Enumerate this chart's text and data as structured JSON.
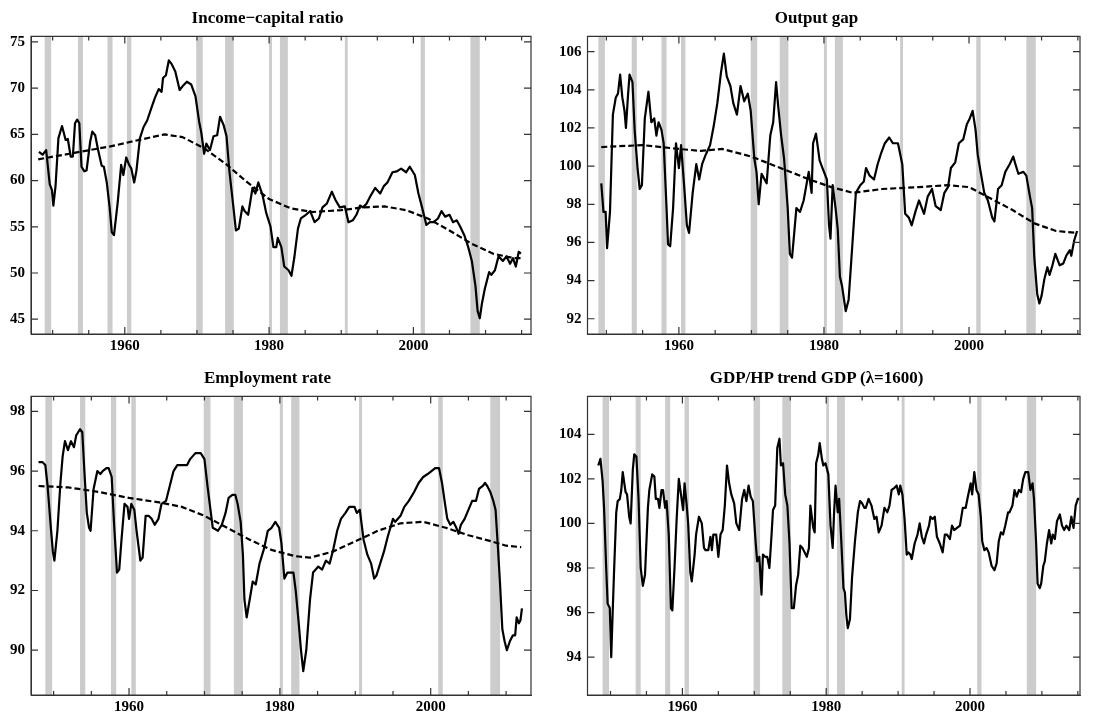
{
  "chart_data": [
    {
      "type": "line",
      "title": "Income−capital ratio",
      "xlim": [
        1947,
        2016.3
      ],
      "ylim": [
        43.4,
        75.6
      ],
      "yticks": [
        45,
        50,
        55,
        60,
        65,
        70,
        75
      ],
      "xticks": [
        {
          "value": 1950,
          "label": null
        },
        {
          "value": 1955,
          "label": null
        },
        1960,
        {
          "value": 1965,
          "label": null
        },
        {
          "value": 1970,
          "label": null
        },
        {
          "value": 1975,
          "label": null
        },
        1980,
        {
          "value": 1985,
          "label": null
        },
        {
          "value": 1990,
          "label": null
        },
        {
          "value": 1995,
          "label": null
        },
        2000,
        {
          "value": 2005,
          "label": null
        },
        {
          "value": 2010,
          "label": null
        },
        {
          "value": 2015,
          "label": null
        }
      ],
      "grid": false,
      "legend": false,
      "marker": "none",
      "bands": [
        {
          "axis": "x",
          "from": 1948.9,
          "to": 1949.8,
          "color": "#cccccc"
        },
        {
          "axis": "x",
          "from": 1953.5,
          "to": 1954.2,
          "color": "#cccccc"
        },
        {
          "axis": "x",
          "from": 1957.6,
          "to": 1958.3,
          "color": "#cccccc"
        },
        {
          "axis": "x",
          "from": 1960.3,
          "to": 1960.9,
          "color": "#cccccc"
        },
        {
          "axis": "x",
          "from": 1969.9,
          "to": 1970.8,
          "color": "#cccccc"
        },
        {
          "axis": "x",
          "from": 1973.9,
          "to": 1975.1,
          "color": "#cccccc"
        },
        {
          "axis": "x",
          "from": 1980.0,
          "to": 1980.4,
          "color": "#cccccc"
        },
        {
          "axis": "x",
          "from": 1981.5,
          "to": 1982.6,
          "color": "#cccccc"
        },
        {
          "axis": "x",
          "from": 1990.5,
          "to": 1990.9,
          "color": "#cccccc"
        },
        {
          "axis": "x",
          "from": 2001.0,
          "to": 2001.6,
          "color": "#cccccc"
        },
        {
          "axis": "x",
          "from": 2007.9,
          "to": 2009.2,
          "color": "#cccccc"
        }
      ],
      "series": [
        {
          "color": "#000000",
          "line_style": "solid",
          "x": [
            1948.1,
            1948.6,
            1949.1,
            1949.6,
            1949.9,
            1950.1,
            1950.4,
            1950.8,
            1951.3,
            1951.8,
            1952.1,
            1952.5,
            1952.8,
            1953.1,
            1953.4,
            1953.7,
            1954.0,
            1954.4,
            1954.7,
            1955.2,
            1955.5,
            1955.9,
            1956.3,
            1956.8,
            1957.1,
            1957.5,
            1957.9,
            1958.2,
            1958.5,
            1959.0,
            1959.5,
            1959.8,
            1960.2,
            1960.6,
            1960.9,
            1961.3,
            1961.6,
            1962.1,
            1962.6,
            1963.1,
            1963.7,
            1964.2,
            1964.7,
            1965.1,
            1965.3,
            1965.7,
            1966.1,
            1966.5,
            1967.0,
            1967.6,
            1968.0,
            1968.6,
            1969.2,
            1969.8,
            1970.3,
            1970.6,
            1971.0,
            1971.3,
            1971.8,
            1972.3,
            1972.8,
            1973.2,
            1973.7,
            1974.1,
            1974.5,
            1975.0,
            1975.4,
            1975.8,
            1976.3,
            1976.6,
            1977.1,
            1977.7,
            1978.1,
            1978.5,
            1979.1,
            1979.6,
            1980.2,
            1980.6,
            1981.0,
            1981.2,
            1981.7,
            1982.1,
            1982.7,
            1983.1,
            1983.5,
            1984.0,
            1984.4,
            1985.1,
            1985.7,
            1986.3,
            1986.9,
            1987.4,
            1988.0,
            1988.7,
            1989.2,
            1989.8,
            1990.5,
            1991.0,
            1991.6,
            1992.1,
            1992.6,
            1993.0,
            1993.5,
            1994.1,
            1994.7,
            1995.4,
            1995.9,
            1996.4,
            1997.1,
            1997.7,
            1998.3,
            1999.0,
            1999.5,
            2000.2,
            2000.7,
            2001.2,
            2001.8,
            2002.3,
            2002.8,
            2003.4,
            2003.9,
            2004.4,
            2005.0,
            2005.5,
            2006.0,
            2006.5,
            2007.1,
            2007.6,
            2008.1,
            2008.6,
            2008.9,
            2009.2,
            2009.5,
            2009.9,
            2010.5,
            2010.8,
            2011.3,
            2011.8,
            2012.4,
            2012.9,
            2013.4,
            2013.8,
            2014.2,
            2014.6,
            2014.9
          ],
          "values": [
            63.1,
            62.8,
            63.3,
            59.6,
            59.0,
            57.3,
            59.4,
            64.6,
            65.9,
            64.4,
            64.5,
            62.6,
            62.6,
            66.2,
            66.6,
            66.2,
            61.5,
            61.0,
            61.1,
            64.2,
            65.3,
            64.9,
            63.3,
            61.6,
            61.5,
            59.8,
            57.1,
            54.4,
            54.1,
            57.5,
            61.7,
            60.6,
            62.5,
            61.7,
            61.3,
            59.8,
            61.0,
            64.6,
            65.8,
            66.5,
            67.9,
            69.0,
            69.9,
            69.6,
            71.1,
            71.4,
            73.0,
            72.6,
            71.8,
            69.8,
            70.2,
            70.7,
            70.4,
            69.1,
            66.4,
            65.2,
            62.9,
            64.0,
            63.3,
            64.8,
            64.9,
            66.9,
            66.0,
            64.8,
            61.0,
            57.5,
            54.6,
            54.8,
            57.2,
            56.7,
            56.3,
            59.2,
            58.6,
            59.8,
            58.4,
            56.5,
            55.0,
            52.8,
            52.8,
            53.8,
            52.8,
            50.7,
            50.3,
            49.7,
            51.7,
            54.8,
            55.9,
            56.3,
            56.7,
            55.5,
            55.9,
            57.1,
            57.5,
            58.8,
            57.9,
            57.1,
            57.2,
            55.5,
            55.7,
            56.3,
            57.3,
            57.1,
            57.5,
            58.4,
            59.2,
            58.6,
            59.4,
            59.8,
            60.9,
            61.0,
            61.3,
            60.9,
            61.5,
            60.6,
            58.6,
            57.1,
            55.2,
            55.5,
            55.5,
            55.9,
            56.7,
            56.1,
            56.3,
            55.5,
            55.7,
            55.0,
            54.0,
            52.8,
            51.3,
            48.6,
            45.9,
            45.1,
            46.7,
            48.3,
            50.1,
            49.8,
            50.3,
            51.8,
            51.3,
            51.8,
            51.0,
            51.6,
            50.7,
            52.3,
            52.1
          ]
        },
        {
          "color": "#000000",
          "line_style": "dashed",
          "x": [
            1948,
            1953,
            1958,
            1962,
            1965.5,
            1968,
            1971,
            1974,
            1977,
            1980,
            1983,
            1986,
            1990,
            1993,
            1996,
            1999,
            2002,
            2005,
            2008,
            2011,
            2014,
            2015
          ],
          "values": [
            62.3,
            63.0,
            63.7,
            64.4,
            65.0,
            64.7,
            63.5,
            61.8,
            59.8,
            58.0,
            57.0,
            56.6,
            56.8,
            57.1,
            57.2,
            56.8,
            55.9,
            54.6,
            53.2,
            52.1,
            51.6,
            51.6
          ]
        }
      ]
    },
    {
      "type": "line",
      "title": "Output gap",
      "xlim": [
        1947.4,
        2015.3
      ],
      "ylim": [
        91.2,
        106.8
      ],
      "yticks": [
        92,
        94,
        96,
        98,
        100,
        102,
        104,
        106
      ],
      "xticks": [
        {
          "value": 1950,
          "label": null
        },
        {
          "value": 1955,
          "label": null
        },
        1960,
        {
          "value": 1965,
          "label": null
        },
        {
          "value": 1970,
          "label": null
        },
        {
          "value": 1975,
          "label": null
        },
        1980,
        {
          "value": 1985,
          "label": null
        },
        {
          "value": 1990,
          "label": null
        },
        {
          "value": 1995,
          "label": null
        },
        2000,
        {
          "value": 2005,
          "label": null
        },
        {
          "value": 2010,
          "label": null
        },
        {
          "value": 2015,
          "label": null
        }
      ],
      "grid": false,
      "legend": false,
      "marker": "none",
      "bands": [
        {
          "axis": "x",
          "from": 1948.9,
          "to": 1949.8,
          "color": "#cccccc"
        },
        {
          "axis": "x",
          "from": 1953.5,
          "to": 1954.2,
          "color": "#cccccc"
        },
        {
          "axis": "x",
          "from": 1957.6,
          "to": 1958.3,
          "color": "#cccccc"
        },
        {
          "axis": "x",
          "from": 1960.3,
          "to": 1960.9,
          "color": "#cccccc"
        },
        {
          "axis": "x",
          "from": 1969.9,
          "to": 1970.8,
          "color": "#cccccc"
        },
        {
          "axis": "x",
          "from": 1973.9,
          "to": 1975.1,
          "color": "#cccccc"
        },
        {
          "axis": "x",
          "from": 1980.0,
          "to": 1980.4,
          "color": "#cccccc"
        },
        {
          "axis": "x",
          "from": 1981.5,
          "to": 1982.6,
          "color": "#cccccc"
        },
        {
          "axis": "x",
          "from": 1990.5,
          "to": 1990.9,
          "color": "#cccccc"
        },
        {
          "axis": "x",
          "from": 2001.0,
          "to": 2001.6,
          "color": "#cccccc"
        },
        {
          "axis": "x",
          "from": 2007.9,
          "to": 2009.2,
          "color": "#cccccc"
        }
      ],
      "series": [
        {
          "color": "#000000",
          "line_style": "solid",
          "x": [
            1949.3,
            1949.6,
            1949.9,
            1950.1,
            1950.5,
            1950.9,
            1951.3,
            1951.6,
            1951.9,
            1952.2,
            1952.5,
            1952.7,
            1953.0,
            1953.2,
            1953.6,
            1953.9,
            1954.3,
            1954.6,
            1954.9,
            1955.3,
            1955.8,
            1956.2,
            1956.6,
            1956.9,
            1957.2,
            1957.6,
            1957.9,
            1958.3,
            1958.5,
            1958.8,
            1959.2,
            1959.6,
            1960.0,
            1960.3,
            1960.7,
            1961.1,
            1961.4,
            1961.9,
            1962.4,
            1962.8,
            1963.2,
            1963.7,
            1964.3,
            1964.8,
            1965.3,
            1965.8,
            1966.2,
            1966.6,
            1967.1,
            1967.5,
            1968.0,
            1968.5,
            1969.0,
            1969.5,
            1969.9,
            1970.4,
            1970.7,
            1971.0,
            1971.4,
            1972.1,
            1972.6,
            1973.0,
            1973.4,
            1973.7,
            1974.1,
            1974.5,
            1975.0,
            1975.3,
            1975.6,
            1976.2,
            1976.7,
            1977.2,
            1977.9,
            1978.3,
            1978.5,
            1978.9,
            1979.4,
            1979.8,
            1980.4,
            1980.7,
            1980.9,
            1981.2,
            1981.6,
            1981.9,
            1982.2,
            1982.5,
            1983.0,
            1983.4,
            1983.9,
            1984.4,
            1985.0,
            1985.5,
            1985.8,
            1986.3,
            1986.9,
            1987.4,
            1987.9,
            1988.4,
            1989.0,
            1989.5,
            1990.2,
            1990.8,
            1991.2,
            1991.7,
            1992.1,
            1992.6,
            1993.1,
            1993.8,
            1994.3,
            1994.9,
            1995.4,
            1996.1,
            1996.6,
            1997.1,
            1997.5,
            1998.1,
            1998.6,
            1999.2,
            1999.7,
            2000.1,
            2000.5,
            2000.9,
            2001.2,
            2001.6,
            2002.1,
            2002.6,
            2003.2,
            2003.5,
            2004.0,
            2004.5,
            2005.0,
            2005.6,
            2006.1,
            2006.4,
            2006.8,
            2007.5,
            2007.9,
            2008.4,
            2008.7,
            2009.0,
            2009.4,
            2009.7,
            2010.0,
            2010.4,
            2010.8,
            2011.1,
            2011.5,
            2011.9,
            2012.5,
            2013.0,
            2013.4,
            2013.9,
            2014.1,
            2014.5,
            2014.9
          ],
          "values": [
            99.1,
            97.6,
            97.6,
            95.7,
            97.6,
            102.7,
            103.6,
            103.8,
            104.8,
            103.6,
            102.9,
            102.0,
            103.8,
            104.8,
            104.4,
            101.9,
            99.9,
            98.8,
            99.0,
            102.5,
            103.9,
            102.3,
            102.5,
            101.6,
            102.3,
            101.9,
            101.2,
            97.8,
            95.9,
            95.8,
            97.8,
            101.2,
            99.9,
            101.1,
            99.1,
            96.9,
            96.5,
            98.6,
            100.1,
            99.3,
            100.1,
            100.6,
            101.1,
            102.1,
            103.3,
            104.9,
            105.9,
            104.7,
            104.2,
            103.3,
            102.7,
            104.2,
            103.4,
            103.8,
            102.9,
            100.4,
            99.7,
            98.0,
            99.6,
            99.1,
            101.6,
            102.3,
            104.4,
            103.1,
            101.6,
            100.4,
            97.8,
            95.4,
            95.2,
            97.8,
            97.6,
            98.2,
            99.7,
            98.6,
            101.2,
            101.7,
            100.3,
            99.9,
            99.3,
            96.9,
            96.2,
            99.0,
            97.8,
            96.7,
            94.2,
            93.7,
            92.4,
            93.0,
            95.8,
            98.6,
            99.0,
            99.2,
            99.9,
            99.5,
            99.3,
            100.1,
            100.7,
            101.2,
            101.5,
            101.2,
            101.2,
            100.1,
            97.5,
            97.3,
            96.9,
            97.6,
            98.2,
            97.5,
            98.4,
            98.8,
            97.9,
            97.7,
            98.6,
            98.9,
            99.9,
            100.2,
            101.2,
            101.4,
            102.2,
            102.5,
            102.9,
            101.9,
            100.6,
            99.7,
            98.6,
            98.2,
            97.3,
            97.1,
            98.8,
            99.0,
            99.7,
            100.1,
            100.5,
            100.1,
            99.6,
            99.7,
            99.5,
            98.4,
            97.8,
            95.2,
            93.3,
            92.8,
            93.2,
            94.1,
            94.7,
            94.3,
            94.8,
            95.4,
            94.8,
            94.9,
            95.3,
            95.6,
            95.3,
            96.1,
            96.6
          ]
        },
        {
          "color": "#000000",
          "line_style": "dashed",
          "x": [
            1949.3,
            1955,
            1960,
            1963,
            1966,
            1970,
            1974,
            1978,
            1981,
            1984,
            1988,
            1993,
            1997,
            2000,
            2003,
            2006,
            2009,
            2012,
            2014.9
          ],
          "values": [
            101.0,
            101.1,
            100.9,
            100.8,
            100.9,
            100.5,
            99.9,
            99.3,
            98.9,
            98.6,
            98.8,
            98.9,
            99.0,
            98.9,
            98.3,
            97.7,
            97.0,
            96.6,
            96.5
          ]
        }
      ]
    },
    {
      "type": "line",
      "title": "Employment rate",
      "xlim": [
        1947,
        2013.3
      ],
      "ylim": [
        88.5,
        98.5
      ],
      "yticks": [
        90,
        92,
        94,
        96,
        98
      ],
      "xticks": [
        {
          "value": 1950,
          "label": null
        },
        {
          "value": 1955,
          "label": null
        },
        1960,
        {
          "value": 1965,
          "label": null
        },
        {
          "value": 1970,
          "label": null
        },
        {
          "value": 1975,
          "label": null
        },
        1980,
        {
          "value": 1985,
          "label": null
        },
        {
          "value": 1990,
          "label": null
        },
        {
          "value": 1995,
          "label": null
        },
        2000,
        {
          "value": 2005,
          "label": null
        },
        {
          "value": 2010,
          "label": null
        }
      ],
      "grid": false,
      "legend": false,
      "marker": "none",
      "bands": [
        {
          "axis": "x",
          "from": 1948.9,
          "to": 1949.8,
          "color": "#cccccc"
        },
        {
          "axis": "x",
          "from": 1953.5,
          "to": 1954.2,
          "color": "#cccccc"
        },
        {
          "axis": "x",
          "from": 1957.6,
          "to": 1958.3,
          "color": "#cccccc"
        },
        {
          "axis": "x",
          "from": 1960.3,
          "to": 1960.9,
          "color": "#cccccc"
        },
        {
          "axis": "x",
          "from": 1969.9,
          "to": 1970.8,
          "color": "#cccccc"
        },
        {
          "axis": "x",
          "from": 1973.9,
          "to": 1975.1,
          "color": "#cccccc"
        },
        {
          "axis": "x",
          "from": 1980.0,
          "to": 1980.4,
          "color": "#cccccc"
        },
        {
          "axis": "x",
          "from": 1981.5,
          "to": 1982.6,
          "color": "#cccccc"
        },
        {
          "axis": "x",
          "from": 1990.5,
          "to": 1990.9,
          "color": "#cccccc"
        },
        {
          "axis": "x",
          "from": 2001.0,
          "to": 2001.6,
          "color": "#cccccc"
        },
        {
          "axis": "x",
          "from": 2007.9,
          "to": 2009.2,
          "color": "#cccccc"
        }
      ],
      "series": [
        {
          "color": "#000000",
          "line_style": "solid",
          "x": [
            1948.0,
            1948.5,
            1948.9,
            1949.2,
            1949.6,
            1949.9,
            1950.1,
            1950.5,
            1950.9,
            1951.2,
            1951.5,
            1951.9,
            1952.3,
            1952.7,
            1953.0,
            1953.5,
            1953.8,
            1954.1,
            1954.4,
            1954.7,
            1954.9,
            1955.3,
            1955.8,
            1956.2,
            1956.5,
            1957.0,
            1957.3,
            1957.7,
            1958.0,
            1958.4,
            1958.7,
            1959.0,
            1959.4,
            1959.8,
            1960.0,
            1960.3,
            1960.7,
            1961.0,
            1961.5,
            1961.8,
            1962.2,
            1962.6,
            1963.0,
            1963.4,
            1963.9,
            1964.3,
            1964.9,
            1965.4,
            1965.9,
            1966.4,
            1967.0,
            1967.7,
            1968.1,
            1968.8,
            1969.5,
            1970.0,
            1970.4,
            1970.8,
            1971.1,
            1971.8,
            1972.3,
            1972.8,
            1973.2,
            1973.7,
            1974.1,
            1974.4,
            1974.8,
            1975.1,
            1975.3,
            1975.6,
            1976.0,
            1976.4,
            1976.8,
            1977.3,
            1977.9,
            1978.4,
            1978.9,
            1979.4,
            1979.9,
            1980.2,
            1980.6,
            1981.0,
            1981.5,
            1981.8,
            1982.1,
            1982.5,
            1982.8,
            1983.1,
            1983.5,
            1984.0,
            1984.4,
            1985.1,
            1985.6,
            1986.1,
            1986.6,
            1987.1,
            1987.6,
            1988.1,
            1988.7,
            1989.2,
            1989.9,
            1990.2,
            1990.6,
            1991.1,
            1991.6,
            1992.1,
            1992.5,
            1992.8,
            1993.3,
            1993.8,
            1994.3,
            1995.0,
            1995.3,
            1996.0,
            1996.5,
            1997.1,
            1997.8,
            1998.4,
            1999.0,
            1999.6,
            2000.1,
            2000.6,
            2001.1,
            2001.5,
            2001.9,
            2002.2,
            2002.6,
            2003.0,
            2003.4,
            2003.7,
            2004.0,
            2004.5,
            2005.0,
            2005.5,
            2006.0,
            2006.4,
            2006.9,
            2007.2,
            2007.5,
            2007.9,
            2008.3,
            2008.6,
            2008.9,
            2009.2,
            2009.5,
            2009.8,
            2010.1,
            2010.5,
            2010.9,
            2011.2,
            2011.4,
            2011.7,
            2011.9,
            2012.1
          ],
          "values": [
            96.3,
            96.3,
            96.2,
            95.5,
            94.2,
            93.3,
            93.0,
            94.0,
            95.6,
            96.5,
            97.0,
            96.7,
            97.0,
            96.8,
            97.2,
            97.4,
            97.3,
            95.9,
            94.6,
            94.1,
            94.0,
            95.4,
            96.0,
            95.9,
            96.0,
            96.1,
            96.1,
            95.8,
            94.3,
            92.6,
            92.7,
            93.7,
            94.9,
            94.8,
            94.4,
            94.9,
            94.7,
            94.0,
            93.0,
            93.1,
            94.5,
            94.5,
            94.4,
            94.2,
            94.4,
            94.9,
            95.0,
            95.5,
            96.0,
            96.2,
            96.2,
            96.2,
            96.4,
            96.6,
            96.6,
            96.4,
            95.5,
            94.7,
            94.1,
            94.0,
            94.2,
            94.6,
            95.1,
            95.2,
            95.2,
            94.9,
            94.3,
            93.2,
            91.7,
            91.1,
            91.7,
            92.3,
            92.2,
            92.9,
            93.4,
            94.0,
            94.1,
            94.3,
            94.1,
            93.6,
            92.4,
            92.6,
            92.6,
            92.6,
            92.0,
            90.9,
            90.0,
            89.3,
            90.0,
            91.7,
            92.6,
            92.8,
            92.7,
            93.0,
            92.9,
            93.4,
            94.0,
            94.4,
            94.6,
            94.8,
            94.8,
            94.6,
            94.7,
            93.7,
            93.2,
            92.9,
            92.4,
            92.5,
            92.9,
            93.3,
            93.8,
            94.4,
            94.3,
            94.5,
            94.8,
            95.0,
            95.3,
            95.6,
            95.8,
            95.9,
            96.0,
            96.1,
            96.1,
            95.6,
            94.9,
            94.4,
            94.2,
            94.3,
            94.1,
            93.9,
            94.2,
            94.4,
            94.7,
            95.0,
            95.0,
            95.4,
            95.5,
            95.6,
            95.5,
            95.3,
            95.0,
            94.7,
            93.5,
            92.2,
            90.7,
            90.3,
            90.0,
            90.3,
            90.5,
            90.5,
            91.1,
            90.9,
            91.0,
            91.4
          ]
        },
        {
          "color": "#000000",
          "line_style": "dashed",
          "x": [
            1948,
            1952,
            1956,
            1960,
            1964,
            1967,
            1970,
            1973,
            1976,
            1979,
            1982,
            1984,
            1987,
            1990,
            1993,
            1996,
            1999,
            2002,
            2005,
            2008,
            2010,
            2012
          ],
          "values": [
            95.5,
            95.45,
            95.3,
            95.1,
            94.95,
            94.8,
            94.5,
            94.1,
            93.7,
            93.35,
            93.15,
            93.1,
            93.3,
            93.65,
            94.0,
            94.25,
            94.3,
            94.1,
            93.85,
            93.65,
            93.5,
            93.45
          ]
        }
      ]
    },
    {
      "type": "line",
      "title": "GDP/HP trend GDP (λ=1600)",
      "xlim": [
        1946.8,
        2015.3
      ],
      "ylim": [
        92.3,
        105.7
      ],
      "yticks": [
        94,
        96,
        98,
        100,
        102,
        104
      ],
      "xticks": [
        {
          "value": 1950,
          "label": null
        },
        {
          "value": 1955,
          "label": null
        },
        1960,
        {
          "value": 1965,
          "label": null
        },
        {
          "value": 1970,
          "label": null
        },
        {
          "value": 1975,
          "label": null
        },
        1980,
        {
          "value": 1985,
          "label": null
        },
        {
          "value": 1990,
          "label": null
        },
        {
          "value": 1995,
          "label": null
        },
        2000,
        {
          "value": 2005,
          "label": null
        },
        {
          "value": 2010,
          "label": null
        },
        {
          "value": 2015,
          "label": null
        }
      ],
      "grid": false,
      "legend": false,
      "marker": "none",
      "bands": [
        {
          "axis": "x",
          "from": 1948.9,
          "to": 1949.8,
          "color": "#cccccc"
        },
        {
          "axis": "x",
          "from": 1953.5,
          "to": 1954.2,
          "color": "#cccccc"
        },
        {
          "axis": "x",
          "from": 1957.6,
          "to": 1958.3,
          "color": "#cccccc"
        },
        {
          "axis": "x",
          "from": 1960.3,
          "to": 1960.9,
          "color": "#cccccc"
        },
        {
          "axis": "x",
          "from": 1969.9,
          "to": 1970.8,
          "color": "#cccccc"
        },
        {
          "axis": "x",
          "from": 1973.9,
          "to": 1975.1,
          "color": "#cccccc"
        },
        {
          "axis": "x",
          "from": 1980.0,
          "to": 1980.4,
          "color": "#cccccc"
        },
        {
          "axis": "x",
          "from": 1981.5,
          "to": 1982.6,
          "color": "#cccccc"
        },
        {
          "axis": "x",
          "from": 1990.5,
          "to": 1990.9,
          "color": "#cccccc"
        },
        {
          "axis": "x",
          "from": 2001.0,
          "to": 2001.6,
          "color": "#cccccc"
        },
        {
          "axis": "x",
          "from": 2007.9,
          "to": 2009.2,
          "color": "#cccccc"
        }
      ],
      "series": [
        {
          "color": "#000000",
          "line_style": "solid",
          "x": [
            1948.3,
            1948.6,
            1948.9,
            1949.1,
            1949.4,
            1949.6,
            1949.9,
            1950.1,
            1950.3,
            1950.5,
            1950.8,
            1951.0,
            1951.3,
            1951.5,
            1951.7,
            1952.1,
            1952.3,
            1952.6,
            1952.8,
            1953.1,
            1953.3,
            1953.6,
            1953.9,
            1954.2,
            1954.5,
            1954.8,
            1955.2,
            1955.4,
            1955.8,
            1956.1,
            1956.3,
            1956.6,
            1956.8,
            1957.1,
            1957.3,
            1957.6,
            1957.8,
            1958.1,
            1958.4,
            1958.6,
            1958.9,
            1959.2,
            1959.5,
            1959.8,
            1960.1,
            1960.3,
            1960.6,
            1960.8,
            1961.1,
            1961.3,
            1961.7,
            1961.9,
            1962.3,
            1962.7,
            1963.0,
            1963.2,
            1963.6,
            1963.9,
            1964.1,
            1964.3,
            1964.7,
            1965.0,
            1965.3,
            1965.6,
            1965.9,
            1966.2,
            1966.5,
            1966.8,
            1967.2,
            1967.5,
            1967.9,
            1968.3,
            1968.6,
            1968.9,
            1969.2,
            1969.5,
            1969.8,
            1970.2,
            1970.4,
            1970.7,
            1971.0,
            1971.2,
            1971.5,
            1971.8,
            1972.1,
            1972.4,
            1972.6,
            1972.9,
            1973.2,
            1973.5,
            1973.7,
            1974.0,
            1974.3,
            1974.6,
            1974.9,
            1975.2,
            1975.5,
            1975.8,
            1976.1,
            1976.4,
            1976.7,
            1977.0,
            1977.3,
            1977.6,
            1977.8,
            1978.2,
            1978.4,
            1978.6,
            1978.9,
            1979.1,
            1979.4,
            1979.6,
            1979.9,
            1980.3,
            1980.6,
            1980.9,
            1981.1,
            1981.3,
            1981.6,
            1981.8,
            1982.1,
            1982.4,
            1982.6,
            1982.8,
            1983.0,
            1983.3,
            1983.6,
            1984.0,
            1984.4,
            1984.7,
            1985.0,
            1985.3,
            1985.5,
            1985.9,
            1986.3,
            1986.7,
            1987.0,
            1987.3,
            1987.7,
            1988.1,
            1988.5,
            1988.8,
            1989.1,
            1989.5,
            1989.8,
            1990.1,
            1990.3,
            1990.6,
            1990.9,
            1991.2,
            1991.4,
            1991.7,
            1991.9,
            1992.3,
            1992.7,
            1993.0,
            1993.3,
            1993.6,
            1993.9,
            1994.3,
            1994.5,
            1994.8,
            1995.1,
            1995.4,
            1995.8,
            1996.2,
            1996.5,
            1996.8,
            1997.2,
            1997.5,
            1997.8,
            1998.2,
            1998.6,
            1999.0,
            1999.4,
            1999.7,
            2000.1,
            2000.3,
            2000.6,
            2000.9,
            2001.2,
            2001.5,
            2001.7,
            2002.0,
            2002.3,
            2002.6,
            2003.0,
            2003.4,
            2003.7,
            2004.0,
            2004.3,
            2004.6,
            2004.9,
            2005.3,
            2005.5,
            2005.9,
            2006.2,
            2006.5,
            2006.8,
            2007.1,
            2007.4,
            2007.7,
            2008.1,
            2008.4,
            2008.7,
            2008.9,
            2009.2,
            2009.4,
            2009.7,
            2009.9,
            2010.2,
            2010.4,
            2010.7,
            2011.0,
            2011.3,
            2011.5,
            2011.8,
            2012.1,
            2012.5,
            2012.8,
            2013.1,
            2013.4,
            2013.8,
            2014.1,
            2014.4,
            2014.7,
            2015.0,
            2015.2
          ],
          "values": [
            102.6,
            102.9,
            101.9,
            100.7,
            98.0,
            96.4,
            96.2,
            94.0,
            96.0,
            97.9,
            100.5,
            101.0,
            101.1,
            101.5,
            102.3,
            101.4,
            101.3,
            100.3,
            100.0,
            102.4,
            103.1,
            103.0,
            101.1,
            98.0,
            97.2,
            97.7,
            100.7,
            101.5,
            102.2,
            102.1,
            101.1,
            101.1,
            100.7,
            101.5,
            101.5,
            100.7,
            101.0,
            99.5,
            96.2,
            96.1,
            98.0,
            100.2,
            102.0,
            101.3,
            100.6,
            101.8,
            100.8,
            100.0,
            97.8,
            97.4,
            98.6,
            99.5,
            100.3,
            100.0,
            98.9,
            98.8,
            98.8,
            99.4,
            98.8,
            99.5,
            99.5,
            98.5,
            99.5,
            99.7,
            100.8,
            102.6,
            101.8,
            101.3,
            100.9,
            100.0,
            99.7,
            101.1,
            101.5,
            101.0,
            101.7,
            101.2,
            101.0,
            99.1,
            98.3,
            98.5,
            96.8,
            98.6,
            98.5,
            98.5,
            98.0,
            99.5,
            100.6,
            100.8,
            103.4,
            103.8,
            102.6,
            102.7,
            101.3,
            100.8,
            99.1,
            96.2,
            96.2,
            97.2,
            97.7,
            99.0,
            98.9,
            98.7,
            98.5,
            98.9,
            100.8,
            99.8,
            99.6,
            102.7,
            103.1,
            103.6,
            102.9,
            102.6,
            102.7,
            102.2,
            99.9,
            98.9,
            100.5,
            101.7,
            100.5,
            101.1,
            99.2,
            97.1,
            96.9,
            95.9,
            95.3,
            95.7,
            97.6,
            99.2,
            100.5,
            101.0,
            100.9,
            100.7,
            100.7,
            101.1,
            100.8,
            100.2,
            100.3,
            99.6,
            99.9,
            100.7,
            100.5,
            100.8,
            101.5,
            101.6,
            101.7,
            101.3,
            101.7,
            101.3,
            100.2,
            98.6,
            98.7,
            98.6,
            98.4,
            99.1,
            99.5,
            100.0,
            99.4,
            99.1,
            99.5,
            99.9,
            100.3,
            100.2,
            100.3,
            99.4,
            99.1,
            98.7,
            99.5,
            99.5,
            99.3,
            99.9,
            99.7,
            99.8,
            99.9,
            100.7,
            100.7,
            101.2,
            101.8,
            101.3,
            102.3,
            101.5,
            101.3,
            100.3,
            99.2,
            98.8,
            98.9,
            98.7,
            98.1,
            97.9,
            98.2,
            99.2,
            99.6,
            99.5,
            99.9,
            100.5,
            100.5,
            100.8,
            101.5,
            101.2,
            101.5,
            101.4,
            102.0,
            102.3,
            102.3,
            101.5,
            101.8,
            101.1,
            99.1,
            97.3,
            97.1,
            97.3,
            98.1,
            98.3,
            99.1,
            99.7,
            99.1,
            99.5,
            99.3,
            100.1,
            100.4,
            99.9,
            99.7,
            99.9,
            99.7,
            100.3,
            99.8,
            100.8,
            101.1,
            101.1
          ]
        }
      ]
    }
  ]
}
